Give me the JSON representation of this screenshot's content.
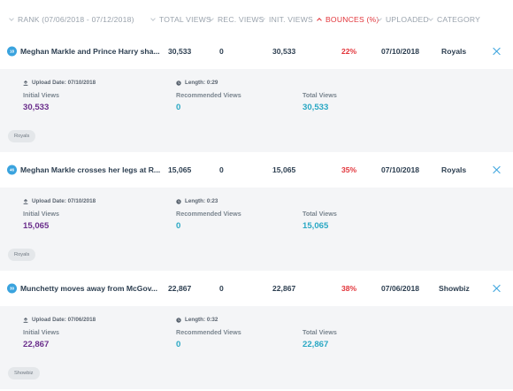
{
  "header": {
    "rank": "RANK (07/06/2018 - 07/12/2018)",
    "total_views": "TOTAL VIEWS",
    "rec_views": "REC. VIEWS",
    "init_views": "INIT. VIEWS",
    "bounces": "BOUNCES (%)",
    "uploaded": "UPLOADED",
    "category": "CATEGORY"
  },
  "labels": {
    "upload_date_prefix": "Upload Date:",
    "length_prefix": "Length:",
    "initial_views": "Initial Views",
    "recommended_views": "Recommended Views",
    "total_views": "Total Views"
  },
  "colors": {
    "accent": "#3aa3de",
    "bounce_red": "#e2353b",
    "initial_purple": "#6b2f8c",
    "total_teal": "#2aa8c4"
  },
  "rows": [
    {
      "rank": "18",
      "title": "Meghan Markle and Prince Harry sha...",
      "total_views": "30,533",
      "rec_views": "0",
      "init_views": "30,533",
      "bounces": "22%",
      "uploaded": "07/10/2018",
      "category": "Royals",
      "detail": {
        "upload_date": "Upload Date: 07/10/2018",
        "length": "Length: 0:29",
        "initial_views": "30,533",
        "recommended_views": "0",
        "total_views": "30,533",
        "tag": "Royals"
      }
    },
    {
      "rank": "46",
      "title": "Meghan Markle crosses her legs at R...",
      "total_views": "15,065",
      "rec_views": "0",
      "init_views": "15,065",
      "bounces": "35%",
      "uploaded": "07/10/2018",
      "category": "Royals",
      "detail": {
        "upload_date": "Upload Date: 07/10/2018",
        "length": "Length: 0:23",
        "initial_views": "15,065",
        "recommended_views": "0",
        "total_views": "15,065",
        "tag": "Royals"
      }
    },
    {
      "rank": "30",
      "title": "Munchetty moves away from McGov...",
      "total_views": "22,867",
      "rec_views": "0",
      "init_views": "22,867",
      "bounces": "38%",
      "uploaded": "07/06/2018",
      "category": "Showbiz",
      "detail": {
        "upload_date": "Upload Date: 07/06/2018",
        "length": "Length: 0:32",
        "initial_views": "22,867",
        "recommended_views": "0",
        "total_views": "22,867",
        "tag": "Showbiz"
      }
    }
  ]
}
